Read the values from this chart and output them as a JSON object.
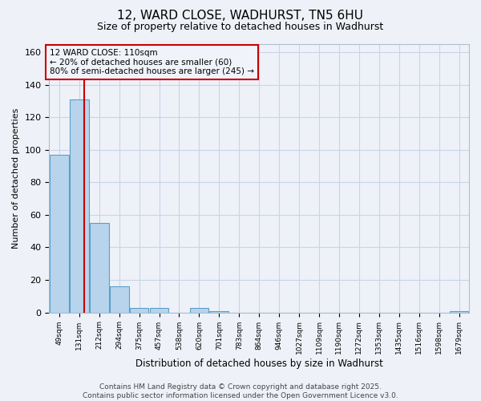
{
  "title": "12, WARD CLOSE, WADHURST, TN5 6HU",
  "subtitle": "Size of property relative to detached houses in Wadhurst",
  "xlabel": "Distribution of detached houses by size in Wadhurst",
  "ylabel": "Number of detached properties",
  "tick_labels": [
    "49sqm",
    "131sqm",
    "212sqm",
    "294sqm",
    "375sqm",
    "457sqm",
    "538sqm",
    "620sqm",
    "701sqm",
    "783sqm",
    "864sqm",
    "946sqm",
    "1027sqm",
    "1109sqm",
    "1190sqm",
    "1272sqm",
    "1353sqm",
    "1435sqm",
    "1516sqm",
    "1598sqm",
    "1679sqm"
  ],
  "bar_values": [
    97,
    131,
    55,
    16,
    3,
    3,
    0,
    3,
    1,
    0,
    0,
    0,
    0,
    0,
    0,
    0,
    0,
    0,
    0,
    0,
    1
  ],
  "bar_color": "#b8d4ec",
  "bar_edge_color": "#5a9fc8",
  "vline_position": 1.25,
  "vline_color": "#cc0000",
  "annotation_text": "12 WARD CLOSE: 110sqm\n← 20% of detached houses are smaller (60)\n80% of semi-detached houses are larger (245) →",
  "annotation_box_facecolor": "#f0f4fa",
  "annotation_box_edgecolor": "#cc0000",
  "ylim": [
    0,
    165
  ],
  "yticks": [
    0,
    20,
    40,
    60,
    80,
    100,
    120,
    140,
    160
  ],
  "footer_text": "Contains HM Land Registry data © Crown copyright and database right 2025.\nContains public sector information licensed under the Open Government Licence v3.0.",
  "background_color": "#eef2f8",
  "grid_color": "#c8d4e8",
  "title_fontsize": 11,
  "subtitle_fontsize": 9,
  "footer_fontsize": 6.5
}
